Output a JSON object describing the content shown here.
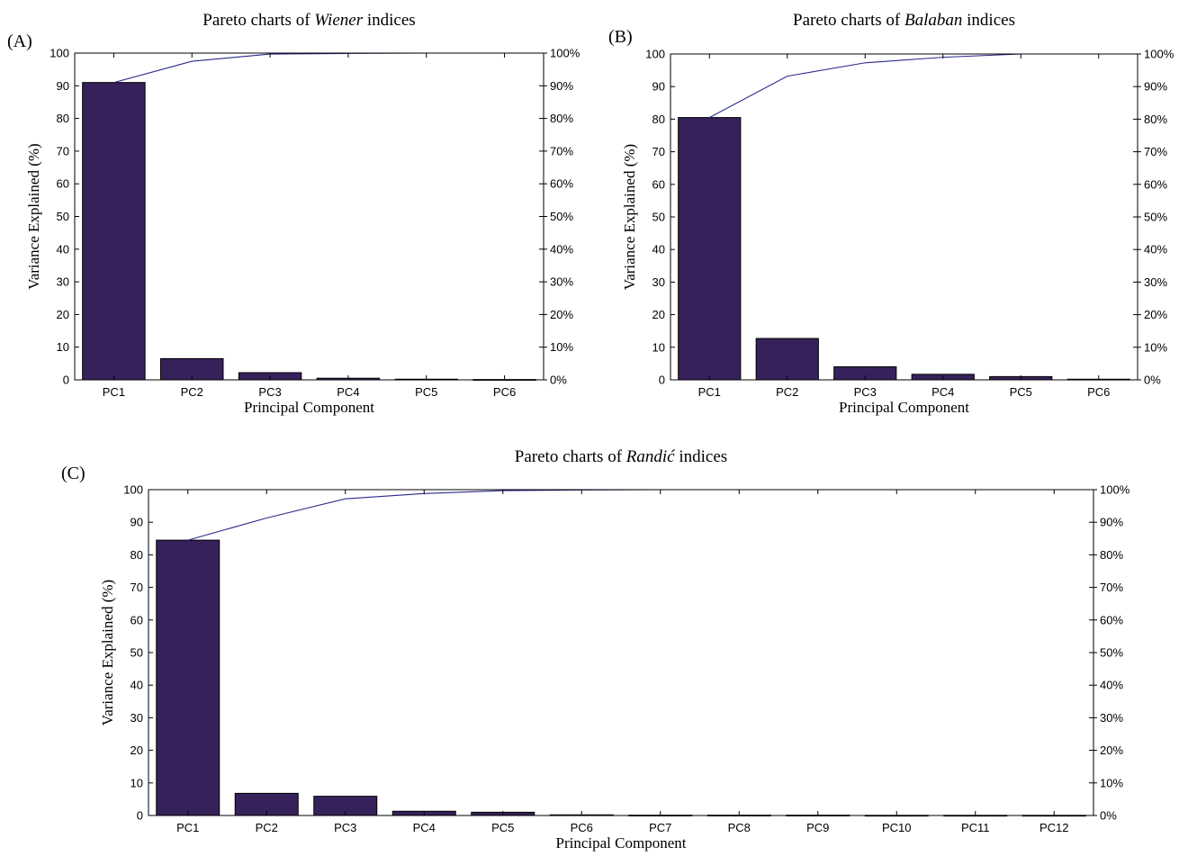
{
  "colors": {
    "bar": "#37215a",
    "line": "#2a2a8c"
  },
  "chart_data": [
    {
      "type": "bar",
      "panel_label": "(A)",
      "title_prefix": "Pareto charts of ",
      "title_italic": "Wiener",
      "title_suffix": " indices",
      "xlabel": "Principal Component",
      "ylabel": "Variance Explained (%)",
      "ylim": [
        0,
        100
      ],
      "yticks": [
        "0",
        "10",
        "20",
        "30",
        "40",
        "50",
        "60",
        "70",
        "80",
        "90",
        "100"
      ],
      "y2ticks": [
        "0%",
        "10%",
        "20%",
        "30%",
        "40%",
        "50%",
        "60%",
        "70%",
        "80%",
        "90%",
        "100%"
      ],
      "categories": [
        "PC1",
        "PC2",
        "PC3",
        "PC4",
        "PC5",
        "PC6"
      ],
      "values": [
        91,
        6.5,
        2.2,
        0.5,
        0.2,
        0.1
      ],
      "cumulative": [
        91,
        97.5,
        99.7,
        99.9,
        100,
        100
      ]
    },
    {
      "type": "bar",
      "panel_label": "(B)",
      "title_prefix": "Pareto charts of ",
      "title_italic": "Balaban",
      "title_suffix": " indices",
      "xlabel": "Principal Component",
      "ylabel": "Variance Explained (%)",
      "ylim": [
        0,
        100
      ],
      "yticks": [
        "0",
        "10",
        "20",
        "30",
        "40",
        "50",
        "60",
        "70",
        "80",
        "90",
        "100"
      ],
      "y2ticks": [
        "0%",
        "10%",
        "20%",
        "30%",
        "40%",
        "50%",
        "60%",
        "70%",
        "80%",
        "90%",
        "100%"
      ],
      "categories": [
        "PC1",
        "PC2",
        "PC3",
        "PC4",
        "PC5",
        "PC6"
      ],
      "values": [
        80.5,
        12.7,
        4.0,
        1.7,
        1.0,
        0.2
      ],
      "cumulative": [
        80.5,
        93.2,
        97.3,
        99.0,
        100,
        100
      ]
    },
    {
      "type": "bar",
      "panel_label": "(C)",
      "title_prefix": "Pareto charts of ",
      "title_italic": "Randić",
      "title_suffix": " indices",
      "xlabel": "Principal Component",
      "ylabel": "Variance Explained (%)",
      "ylim": [
        0,
        100
      ],
      "yticks": [
        "0",
        "10",
        "20",
        "30",
        "40",
        "50",
        "60",
        "70",
        "80",
        "90",
        "100"
      ],
      "y2ticks": [
        "0%",
        "10%",
        "20%",
        "30%",
        "40%",
        "50%",
        "60%",
        "70%",
        "80%",
        "90%",
        "100%"
      ],
      "categories": [
        "PC1",
        "PC2",
        "PC3",
        "PC4",
        "PC5",
        "PC6",
        "PC7",
        "PC8",
        "PC9",
        "PC10",
        "PC11",
        "PC12"
      ],
      "values": [
        84.5,
        6.8,
        5.9,
        1.3,
        1.0,
        0.2,
        0.1,
        0.1,
        0.1,
        0.05,
        0.05,
        0.05
      ],
      "cumulative": [
        84.5,
        91.3,
        97.2,
        98.8,
        99.7,
        99.9,
        100,
        100,
        100,
        100,
        100,
        100
      ]
    }
  ]
}
